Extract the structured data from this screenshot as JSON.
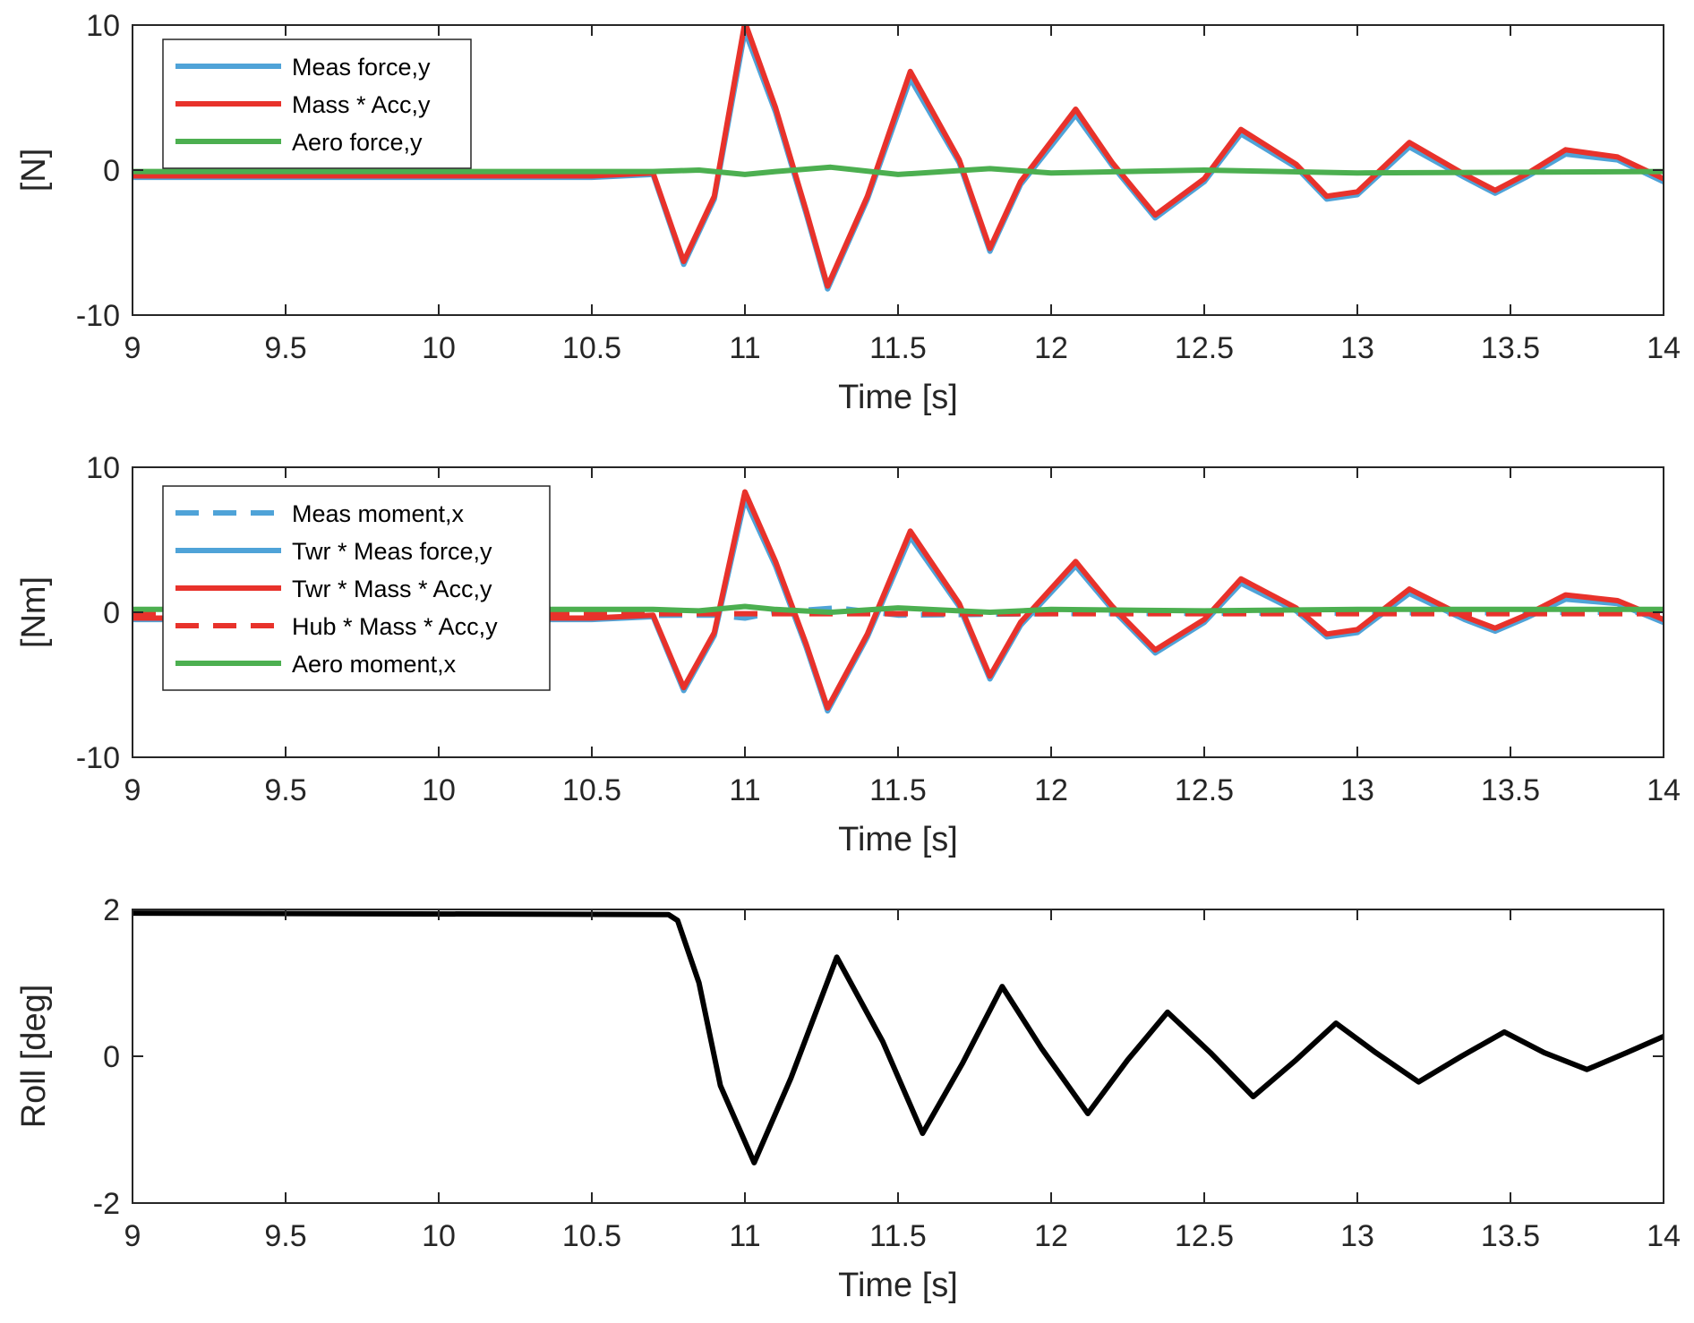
{
  "chart_data": [
    {
      "type": "line",
      "ylabel": "[N]",
      "xlabel": "Time [s]",
      "xlim": [
        9,
        14
      ],
      "ylim": [
        -10,
        10
      ],
      "xticks": [
        "9",
        "9.5",
        "10",
        "10.5",
        "11",
        "11.5",
        "12",
        "12.5",
        "13",
        "13.5",
        "14"
      ],
      "yticks": [
        "-10",
        "0",
        "10"
      ],
      "legend_position": "top-left",
      "series": [
        {
          "name": "Meas force,y",
          "color": "#4fa3d8",
          "dash": "solid",
          "x": [
            9,
            10.5,
            10.7,
            10.8,
            10.9,
            11.0,
            11.1,
            11.2,
            11.27,
            11.4,
            11.54,
            11.7,
            11.8,
            11.9,
            12.08,
            12.2,
            12.34,
            12.5,
            12.62,
            12.8,
            12.9,
            13.0,
            13.17,
            13.35,
            13.45,
            13.55,
            13.68,
            13.85,
            14
          ],
          "y": [
            -0.5,
            -0.5,
            -0.3,
            -6.5,
            -2.0,
            9.6,
            4.0,
            -3.0,
            -8.2,
            -2.0,
            6.3,
            0.5,
            -5.6,
            -1.0,
            3.8,
            0.3,
            -3.3,
            -0.8,
            2.5,
            0.2,
            -2.0,
            -1.7,
            1.6,
            -0.5,
            -1.6,
            -0.5,
            1.1,
            0.7,
            -0.8
          ]
        },
        {
          "name": "Mass * Acc,y",
          "color": "#e8322b",
          "dash": "solid",
          "x": [
            9,
            10.5,
            10.7,
            10.8,
            10.9,
            11.0,
            11.1,
            11.2,
            11.27,
            11.4,
            11.54,
            11.7,
            11.8,
            11.9,
            12.08,
            12.2,
            12.34,
            12.5,
            12.62,
            12.8,
            12.9,
            13.0,
            13.17,
            13.35,
            13.45,
            13.55,
            13.68,
            13.85,
            14
          ],
          "y": [
            -0.4,
            -0.4,
            -0.2,
            -6.3,
            -1.8,
            10.2,
            4.3,
            -2.8,
            -8.0,
            -1.8,
            6.8,
            0.7,
            -5.4,
            -0.8,
            4.2,
            0.5,
            -3.1,
            -0.6,
            2.8,
            0.4,
            -1.8,
            -1.5,
            1.9,
            -0.3,
            -1.4,
            -0.3,
            1.4,
            0.9,
            -0.6
          ]
        },
        {
          "name": "Aero force,y",
          "color": "#4caf50",
          "dash": "solid",
          "x": [
            9,
            10.7,
            10.85,
            11.0,
            11.1,
            11.28,
            11.5,
            11.8,
            12.0,
            12.5,
            13.0,
            14
          ],
          "y": [
            -0.1,
            -0.1,
            0.0,
            -0.3,
            -0.1,
            0.2,
            -0.3,
            0.1,
            -0.2,
            0.0,
            -0.2,
            -0.1
          ]
        }
      ]
    },
    {
      "type": "line",
      "ylabel": "[Nm]",
      "xlabel": "Time [s]",
      "xlim": [
        9,
        14
      ],
      "ylim": [
        -10,
        10
      ],
      "xticks": [
        "9",
        "9.5",
        "10",
        "10.5",
        "11",
        "11.5",
        "12",
        "12.5",
        "13",
        "13.5",
        "14"
      ],
      "yticks": [
        "-10",
        "0",
        "10"
      ],
      "legend_position": "top-left",
      "series": [
        {
          "name": "Meas moment,x",
          "color": "#4fa3d8",
          "dash": "dashed",
          "x": [
            9,
            10.9,
            11.0,
            11.1,
            11.3,
            11.5,
            12.0,
            14
          ],
          "y": [
            -0.3,
            -0.2,
            -0.4,
            0.0,
            0.3,
            -0.2,
            -0.1,
            0.0
          ]
        },
        {
          "name": "Twr * Meas force,y",
          "color": "#4fa3d8",
          "dash": "solid",
          "x": [
            9,
            10.5,
            10.7,
            10.8,
            10.9,
            11.0,
            11.1,
            11.2,
            11.27,
            11.4,
            11.54,
            11.7,
            11.8,
            11.9,
            12.08,
            12.2,
            12.34,
            12.5,
            12.62,
            12.8,
            12.9,
            13.0,
            13.17,
            13.35,
            13.45,
            13.55,
            13.68,
            13.85,
            14
          ],
          "y": [
            -0.5,
            -0.5,
            -0.3,
            -5.4,
            -1.6,
            7.8,
            3.2,
            -2.4,
            -6.8,
            -1.7,
            5.2,
            0.4,
            -4.6,
            -0.9,
            3.2,
            0.2,
            -2.8,
            -0.7,
            2.0,
            0.1,
            -1.7,
            -1.4,
            1.3,
            -0.5,
            -1.3,
            -0.4,
            0.9,
            0.6,
            -0.7
          ]
        },
        {
          "name": "Twr * Mass * Acc,y",
          "color": "#e8322b",
          "dash": "solid",
          "x": [
            9,
            10.5,
            10.7,
            10.8,
            10.9,
            11.0,
            11.1,
            11.2,
            11.27,
            11.4,
            11.54,
            11.7,
            11.8,
            11.9,
            12.08,
            12.2,
            12.34,
            12.5,
            12.62,
            12.8,
            12.9,
            13.0,
            13.17,
            13.35,
            13.45,
            13.55,
            13.68,
            13.85,
            14
          ],
          "y": [
            -0.4,
            -0.4,
            -0.2,
            -5.2,
            -1.4,
            8.3,
            3.5,
            -2.2,
            -6.6,
            -1.5,
            5.6,
            0.6,
            -4.4,
            -0.7,
            3.5,
            0.4,
            -2.6,
            -0.5,
            2.3,
            0.3,
            -1.5,
            -1.2,
            1.6,
            -0.3,
            -1.1,
            -0.2,
            1.2,
            0.8,
            -0.5
          ]
        },
        {
          "name": "Hub * Mass * Acc,y",
          "color": "#e8322b",
          "dash": "dashed",
          "x": [
            9,
            14
          ],
          "y": [
            -0.1,
            -0.1
          ]
        },
        {
          "name": "Aero moment,x",
          "color": "#4caf50",
          "dash": "solid",
          "x": [
            9,
            10.7,
            10.85,
            11.0,
            11.1,
            11.28,
            11.5,
            11.8,
            12.0,
            12.5,
            13.0,
            14
          ],
          "y": [
            0.2,
            0.2,
            0.1,
            0.4,
            0.2,
            0.0,
            0.3,
            0.0,
            0.2,
            0.1,
            0.2,
            0.2
          ]
        }
      ]
    },
    {
      "type": "line",
      "ylabel": "Roll [deg]",
      "xlabel": "Time [s]",
      "xlim": [
        9,
        14
      ],
      "ylim": [
        -2,
        2
      ],
      "xticks": [
        "9",
        "9.5",
        "10",
        "10.5",
        "11",
        "11.5",
        "12",
        "12.5",
        "13",
        "13.5",
        "14"
      ],
      "yticks": [
        "-2",
        "0",
        "2"
      ],
      "series": [
        {
          "name": "Roll",
          "color": "#000000",
          "dash": "solid",
          "x": [
            9,
            10.75,
            10.78,
            10.85,
            10.92,
            11.03,
            11.15,
            11.3,
            11.45,
            11.58,
            11.71,
            11.84,
            11.97,
            12.12,
            12.25,
            12.38,
            12.52,
            12.66,
            12.8,
            12.93,
            13.06,
            13.2,
            13.34,
            13.48,
            13.61,
            13.75,
            13.88,
            14.0
          ],
          "y": [
            1.95,
            1.93,
            1.85,
            1.0,
            -0.4,
            -1.45,
            -0.3,
            1.35,
            0.2,
            -1.05,
            -0.1,
            0.95,
            0.1,
            -0.78,
            -0.05,
            0.6,
            0.05,
            -0.55,
            -0.05,
            0.45,
            0.05,
            -0.35,
            0.0,
            0.33,
            0.05,
            -0.18,
            0.05,
            0.27
          ]
        }
      ]
    }
  ]
}
